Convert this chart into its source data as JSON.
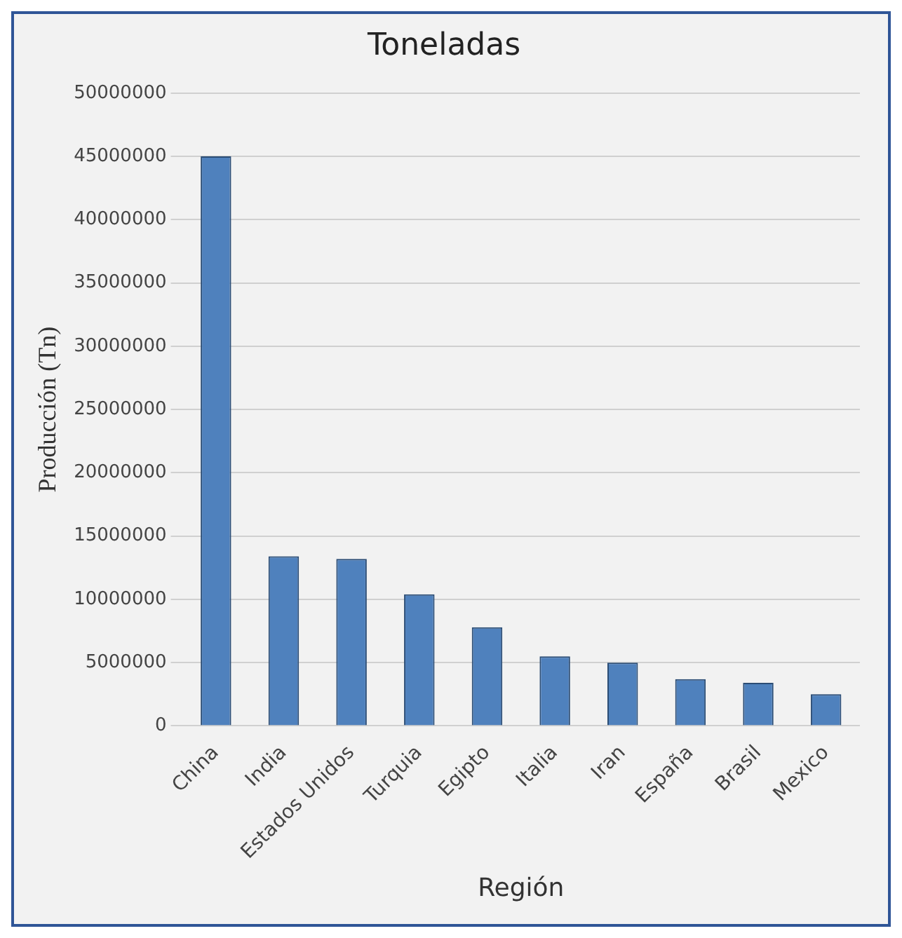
{
  "chart_data": {
    "type": "bar",
    "title": "Toneladas",
    "xlabel": "Región",
    "ylabel": "Producción (Tn)",
    "categories": [
      "China",
      "India",
      "Estados Unidos",
      "Turquia",
      "Egipto",
      "Italia",
      "Iran",
      "España",
      "Brasil",
      "Mexico"
    ],
    "values": [
      45000000,
      13400000,
      13200000,
      10400000,
      7800000,
      5500000,
      5000000,
      3700000,
      3400000,
      2500000
    ],
    "color": "#4f81bd",
    "ylim": [
      0,
      50000000
    ],
    "yticks": [
      0,
      5000000,
      10000000,
      15000000,
      20000000,
      25000000,
      30000000,
      35000000,
      40000000,
      45000000,
      50000000
    ],
    "grid": "y",
    "legend": false
  }
}
